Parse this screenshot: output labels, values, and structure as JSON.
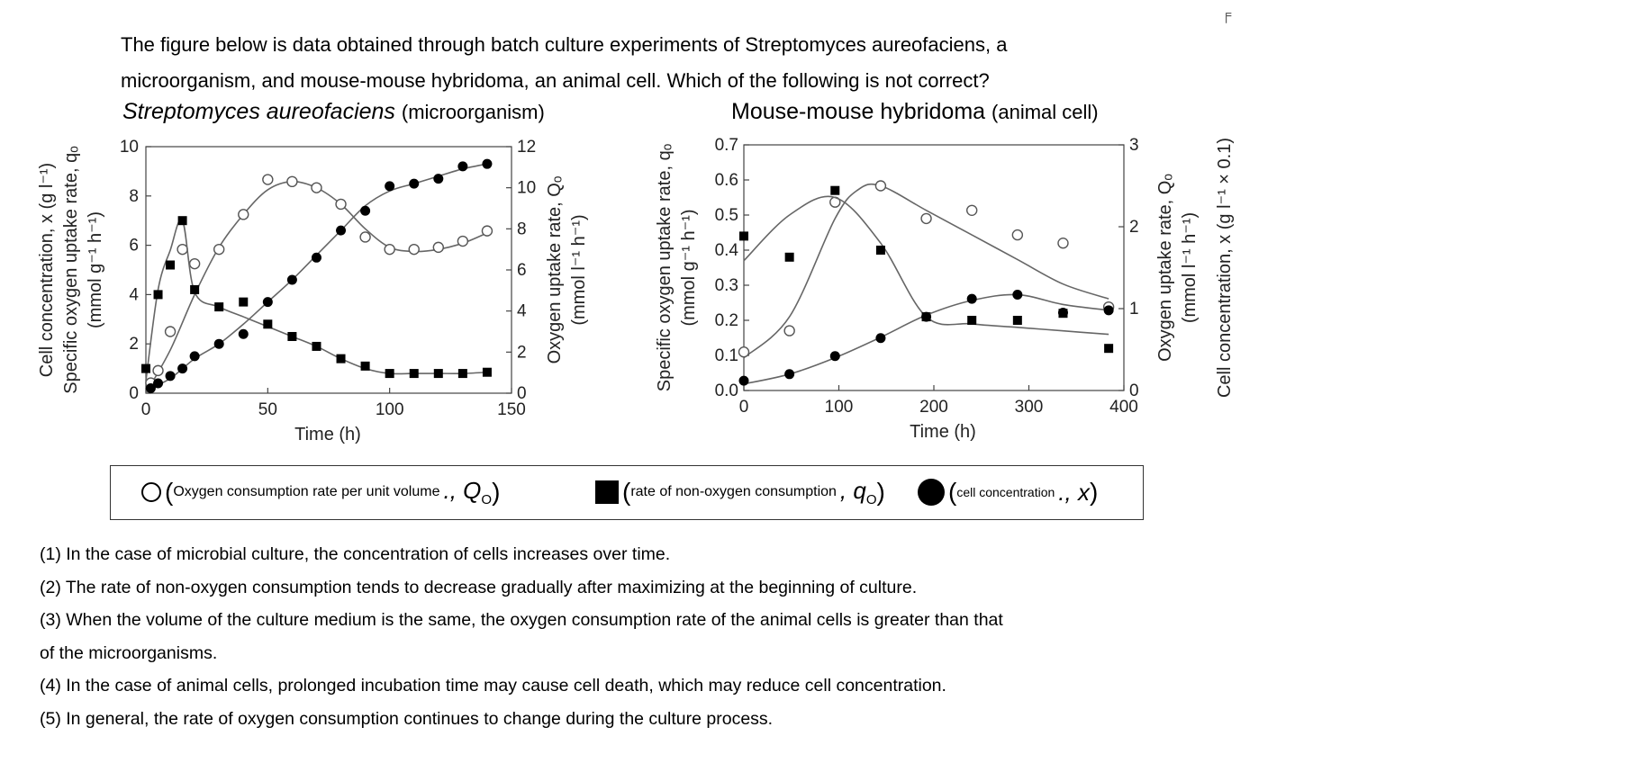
{
  "question": {
    "line1": "The figure below is data obtained through batch culture experiments of Streptomyces aureofaciens, a",
    "line2": "microorganism, and mouse-mouse hybridoma, an animal cell. Which of the following is not correct?"
  },
  "corner_mark": "╒",
  "legend": {
    "open": {
      "paren": "(",
      "text": "Oxygen consumption rate per unit volume",
      "suffix": "., Q",
      "sub": "O",
      "close": ")"
    },
    "square": {
      "paren": "(",
      "text": "rate of non-oxygen consumption",
      "suffix": ", q",
      "sub": "O",
      "close": ")"
    },
    "filled": {
      "paren": "(",
      "text": "cell concentration",
      "suffix": "., x",
      "close": ")"
    }
  },
  "options": [
    "(1) In the case of microbial culture, the concentration of cells increases over time.",
    "(2) The rate of non-oxygen consumption tends to decrease gradually after maximizing at the beginning of culture.",
    "(3) When the volume of the culture medium is the same, the oxygen consumption rate of the animal cells is greater than that",
    "of the microorganisms.",
    "(4) In the case of animal cells, prolonged incubation time may cause cell death, which may reduce cell concentration.",
    "(5) In general, the rate of oxygen consumption continues to change during the culture process."
  ],
  "chart_data": [
    {
      "type": "scatter",
      "title": "Streptomyces aureofaciens",
      "subtitle": "(microorganism)",
      "xlabel": "Time (h)",
      "ylabel_left": [
        "Cell concentration, x (g l⁻¹)",
        "Specific oxygen uptake rate, qₒ",
        "(mmol g⁻¹ h⁻¹)"
      ],
      "ylabel_right": [
        "Oxygen uptake rate, Qₒ",
        "(mmol l⁻¹ h⁻¹)"
      ],
      "xlim": [
        0,
        150
      ],
      "ylim_left": [
        0,
        10
      ],
      "ylim_right": [
        0,
        12
      ],
      "xticks": [
        0,
        50,
        100,
        150
      ],
      "yticks_left": [
        0,
        2,
        4,
        6,
        8,
        10
      ],
      "yticks_right": [
        0,
        2,
        4,
        6,
        8,
        10,
        12
      ],
      "series": [
        {
          "name": "Q_O",
          "axis": "right",
          "marker": "open-circle",
          "x": [
            2,
            5,
            10,
            15,
            20,
            30,
            40,
            50,
            60,
            70,
            80,
            90,
            100,
            110,
            120,
            130,
            140
          ],
          "y": [
            0.5,
            1.1,
            3.0,
            7.0,
            6.3,
            7.0,
            8.7,
            10.4,
            10.3,
            10.0,
            9.2,
            7.6,
            7.0,
            7.0,
            7.1,
            7.4,
            7.9
          ],
          "fit_x": [
            0,
            10,
            20,
            30,
            40,
            50,
            60,
            70,
            80,
            90,
            100,
            110,
            120,
            130,
            140
          ],
          "fit_y": [
            0,
            2.1,
            4.8,
            7.1,
            8.7,
            9.9,
            10.3,
            10.0,
            9.2,
            8.0,
            7.1,
            6.9,
            7.0,
            7.3,
            7.8
          ]
        },
        {
          "name": "q_O",
          "axis": "left",
          "marker": "square",
          "x": [
            0,
            5,
            10,
            15,
            20,
            30,
            40,
            50,
            60,
            70,
            80,
            90,
            100,
            110,
            120,
            130,
            140
          ],
          "y": [
            1.0,
            4.0,
            5.2,
            7.0,
            4.2,
            3.5,
            3.7,
            2.8,
            2.3,
            1.9,
            1.4,
            1.1,
            0.8,
            0.8,
            0.8,
            0.8,
            0.85
          ],
          "fit_x": [
            0,
            5,
            10,
            15,
            20,
            30,
            40,
            50,
            60,
            70,
            80,
            90,
            100,
            110,
            120,
            130,
            140
          ],
          "fit_y": [
            0.5,
            4.2,
            5.8,
            7.0,
            4.1,
            3.5,
            3.1,
            2.7,
            2.3,
            1.9,
            1.4,
            1.0,
            0.8,
            0.8,
            0.8,
            0.8,
            0.85
          ]
        },
        {
          "name": "x",
          "axis": "left",
          "marker": "filled-circle",
          "x": [
            2,
            5,
            10,
            15,
            20,
            30,
            40,
            50,
            60,
            70,
            80,
            90,
            100,
            110,
            120,
            130,
            140
          ],
          "y": [
            0.2,
            0.4,
            0.7,
            1.0,
            1.5,
            2.0,
            2.4,
            3.7,
            4.6,
            5.5,
            6.6,
            7.4,
            8.4,
            8.5,
            8.7,
            9.2,
            9.3
          ],
          "fit_x": [
            0,
            10,
            20,
            30,
            40,
            50,
            60,
            70,
            80,
            90,
            100,
            110,
            120,
            130,
            140
          ],
          "fit_y": [
            0.1,
            0.6,
            1.4,
            2.0,
            2.8,
            3.7,
            4.6,
            5.6,
            6.6,
            7.6,
            8.2,
            8.5,
            8.8,
            9.1,
            9.3
          ]
        }
      ]
    },
    {
      "type": "scatter",
      "title": "Mouse-mouse hybridoma",
      "subtitle": "(animal cell)",
      "xlabel": "Time (h)",
      "ylabel_left": [
        "Specific oxygen uptake rate, qₒ",
        "(mmol g⁻¹ h⁻¹)"
      ],
      "ylabel_right": [
        "Oxygen uptake rate, Qₒ",
        "(mmol l⁻¹ h⁻¹)"
      ],
      "ylabel_right2": "Cell concentration, x (g l⁻¹ × 0.1)",
      "xlim": [
        0,
        400
      ],
      "ylim_left": [
        0,
        0.7
      ],
      "ylim_right": [
        0,
        3
      ],
      "xticks": [
        0,
        100,
        200,
        300,
        400
      ],
      "yticks_left": [
        0.0,
        0.1,
        0.2,
        0.3,
        0.4,
        0.5,
        0.6,
        0.7
      ],
      "yticks_left_labels": [
        "0.0",
        "0.1",
        "0.2",
        "0.3",
        "0.4",
        "0.5",
        "0.6",
        "0.7"
      ],
      "yticks_right": [
        0,
        1,
        2,
        3
      ],
      "series": [
        {
          "name": "Q_O",
          "axis": "right",
          "marker": "open-circle",
          "x": [
            0,
            48,
            96,
            144,
            192,
            240,
            288,
            336,
            384
          ],
          "y": [
            0.47,
            0.73,
            2.3,
            2.5,
            2.1,
            2.2,
            1.9,
            1.8,
            1.02
          ],
          "fit_x": [
            0,
            48,
            96,
            120,
            144,
            192,
            240,
            288,
            336,
            384
          ],
          "fit_y": [
            0.4,
            0.9,
            2.1,
            2.45,
            2.5,
            2.2,
            1.9,
            1.6,
            1.3,
            1.12
          ]
        },
        {
          "name": "q_O",
          "axis": "left",
          "marker": "square",
          "x": [
            0,
            48,
            96,
            144,
            192,
            240,
            288,
            336,
            384
          ],
          "y": [
            0.44,
            0.38,
            0.57,
            0.4,
            0.21,
            0.2,
            0.2,
            0.22,
            0.12
          ],
          "fit_x": [
            0,
            48,
            96,
            144,
            192,
            240,
            288,
            336,
            384
          ],
          "fit_y": [
            0.37,
            0.5,
            0.55,
            0.42,
            0.21,
            0.19,
            0.18,
            0.17,
            0.16
          ]
        },
        {
          "name": "x",
          "axis": "right",
          "marker": "filled-circle",
          "x": [
            0,
            48,
            96,
            144,
            192,
            240,
            288,
            336,
            384
          ],
          "y": [
            0.12,
            0.2,
            0.42,
            0.64,
            0.9,
            1.12,
            1.17,
            0.95,
            0.98
          ],
          "fit_x": [
            0,
            48,
            96,
            144,
            192,
            240,
            288,
            336,
            384
          ],
          "fit_y": [
            0.08,
            0.2,
            0.4,
            0.65,
            0.92,
            1.1,
            1.17,
            1.05,
            0.98
          ]
        }
      ]
    }
  ]
}
